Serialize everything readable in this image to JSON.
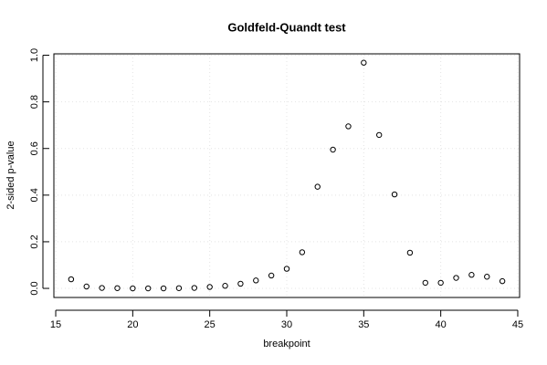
{
  "chart_data": {
    "type": "scatter",
    "title": "Goldfeld-Quandt test",
    "x_label": "breakpoint",
    "y_label": "2-sided p-value",
    "x": [
      16,
      17,
      18,
      19,
      20,
      21,
      22,
      23,
      24,
      25,
      26,
      27,
      28,
      29,
      30,
      31,
      32,
      33,
      34,
      35,
      36,
      37,
      38,
      39,
      40,
      41,
      42,
      43,
      44
    ],
    "values": [
      0.039,
      0.008,
      0.002,
      0.001,
      0.0,
      0.0,
      0.0,
      0.001,
      0.002,
      0.006,
      0.011,
      0.02,
      0.034,
      0.055,
      0.084,
      0.155,
      0.436,
      0.595,
      0.695,
      0.968,
      0.658,
      0.403,
      0.153,
      0.024,
      0.024,
      0.045,
      0.058,
      0.05,
      0.031
    ],
    "color": "#000000",
    "xlim": [
      14.88,
      45.12
    ],
    "ylim": [
      -0.039,
      1.006
    ],
    "xticks": [
      15,
      20,
      25,
      30,
      35,
      40,
      45
    ],
    "yticks": [
      {
        "value": 0,
        "label": "0.0"
      },
      0.2,
      0.4,
      0.6,
      0.8,
      {
        "value": 1,
        "label": "1.0"
      }
    ],
    "grid": true
  }
}
